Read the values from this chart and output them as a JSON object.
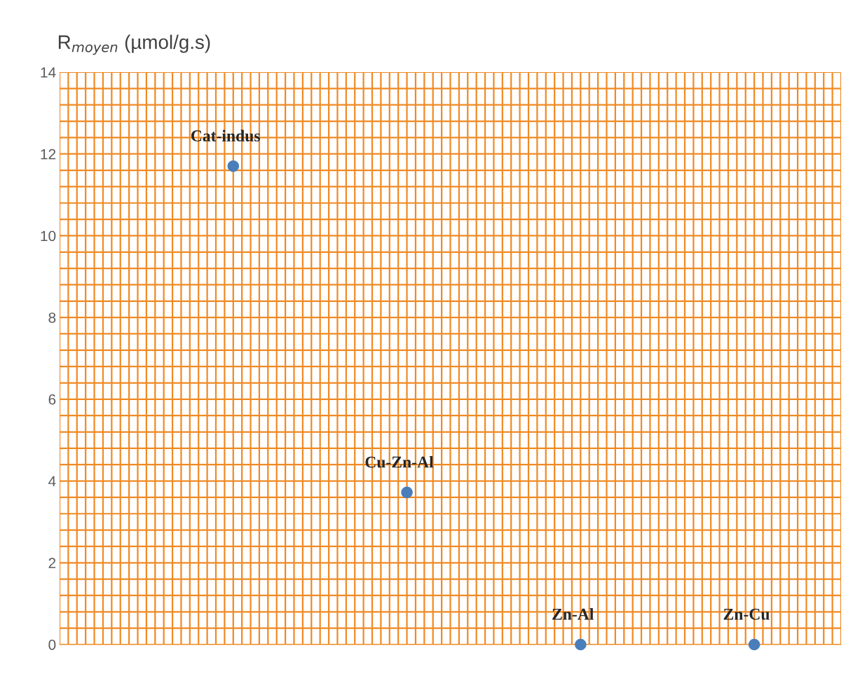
{
  "chart_data": {
    "type": "scatter",
    "ylabel": "R$_{moyen}$ (µmol/g.s)",
    "categories": [
      null,
      null,
      null,
      null
    ],
    "series": [
      {
        "color": "#4a7ebb",
        "values": [
          11.7,
          3.72,
          0,
          0
        ]
      }
    ],
    "ylim": [
      0,
      14
    ],
    "yticks": [
      0,
      2,
      4,
      6,
      8,
      10,
      12,
      14
    ],
    "tick_labels": "y",
    "grid": true,
    "marker": "circle",
    "annotations": [
      {
        "text": "Cat-indus",
        "y": 11.7
      },
      {
        "text": "Cu-Zn-Al",
        "y": 3.72
      },
      {
        "text": "Zn-Al",
        "y": 0
      },
      {
        "text": "Zn-Cu",
        "y": 0
      }
    ]
  }
}
